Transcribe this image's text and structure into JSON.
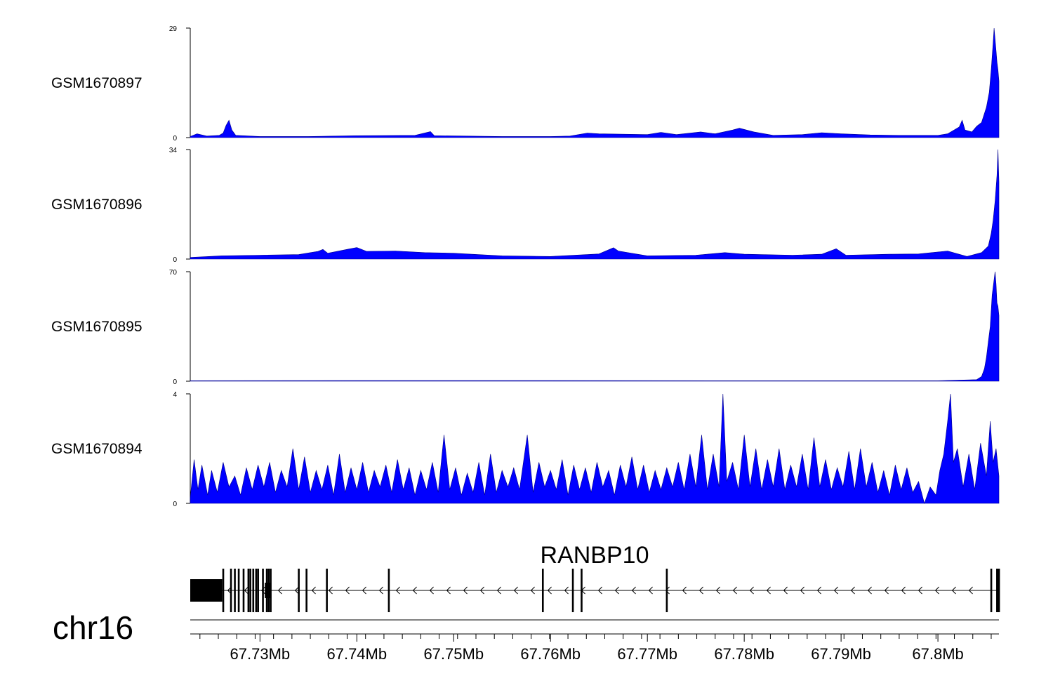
{
  "chart_data": {
    "type": "area",
    "chromosome": "chr16",
    "x_range_mb": [
      67.7228,
      67.8063
    ],
    "x_tick_labels": [
      "67.73Mb",
      "67.74Mb",
      "67.75Mb",
      "67.76Mb",
      "67.77Mb",
      "67.78Mb",
      "67.79Mb",
      "67.8Mb"
    ],
    "x_major_ticks_mb": [
      67.73,
      67.74,
      67.75,
      67.76,
      67.77,
      67.78,
      67.79,
      67.8
    ],
    "x_minor_ticks_mb": [
      67.7238,
      67.7257,
      67.7276,
      67.7295,
      67.7314,
      67.7333,
      67.7352,
      67.7371,
      67.739,
      67.7409,
      67.7428,
      67.7447,
      67.7466,
      67.7485,
      67.7504,
      67.7523,
      67.7542,
      67.7561,
      67.758,
      67.7599,
      67.7618,
      67.7637,
      67.7656,
      67.7675,
      67.7694,
      67.7713,
      67.7732,
      67.7751,
      67.777,
      67.7789,
      67.7808,
      67.7827,
      67.7846,
      67.7865,
      67.7884,
      67.7903,
      67.7922,
      67.7941,
      67.796,
      67.7979,
      67.7998,
      67.8017,
      67.8036,
      67.8055
    ],
    "fill_color": "#0000ff",
    "tracks": [
      {
        "name": "GSM1670897",
        "ylim": [
          0,
          29
        ],
        "y_tick_labels": [
          "29",
          "0"
        ],
        "points": [
          [
            67.7228,
            0.3
          ],
          [
            67.7235,
            1.0
          ],
          [
            67.7245,
            0.4
          ],
          [
            67.7258,
            0.6
          ],
          [
            67.7262,
            1.2
          ],
          [
            67.7265,
            3.2
          ],
          [
            67.7268,
            4.6
          ],
          [
            67.7271,
            2.0
          ],
          [
            67.7275,
            0.6
          ],
          [
            67.73,
            0.3
          ],
          [
            67.735,
            0.3
          ],
          [
            67.74,
            0.5
          ],
          [
            67.746,
            0.6
          ],
          [
            67.7476,
            1.6
          ],
          [
            67.748,
            0.5
          ],
          [
            67.755,
            0.3
          ],
          [
            67.76,
            0.3
          ],
          [
            67.762,
            0.4
          ],
          [
            67.7638,
            1.2
          ],
          [
            67.765,
            1.0
          ],
          [
            67.77,
            0.8
          ],
          [
            67.7714,
            1.4
          ],
          [
            67.773,
            0.8
          ],
          [
            67.7755,
            1.5
          ],
          [
            67.777,
            1.0
          ],
          [
            67.7788,
            2.0
          ],
          [
            67.7795,
            2.5
          ],
          [
            67.781,
            1.5
          ],
          [
            67.783,
            0.6
          ],
          [
            67.786,
            0.8
          ],
          [
            67.788,
            1.3
          ],
          [
            67.79,
            1.0
          ],
          [
            67.793,
            0.7
          ],
          [
            67.796,
            0.6
          ],
          [
            67.798,
            0.6
          ],
          [
            67.8,
            0.6
          ],
          [
            67.801,
            1.0
          ],
          [
            67.8022,
            2.8
          ],
          [
            67.8025,
            4.6
          ],
          [
            67.8028,
            2.0
          ],
          [
            67.8035,
            1.5
          ],
          [
            67.804,
            3.0
          ],
          [
            67.8045,
            4.0
          ],
          [
            67.805,
            8.0
          ],
          [
            67.8053,
            12.0
          ],
          [
            67.8055,
            18.0
          ],
          [
            67.8057,
            25.0
          ],
          [
            67.8058,
            29.0
          ],
          [
            67.806,
            23.0
          ],
          [
            67.8061,
            20.0
          ],
          [
            67.8062,
            18.0
          ],
          [
            67.8063,
            15.0
          ]
        ]
      },
      {
        "name": "GSM1670896",
        "ylim": [
          0,
          34
        ],
        "y_tick_labels": [
          "34",
          "0"
        ],
        "points": [
          [
            67.7228,
            0.5
          ],
          [
            67.726,
            1.0
          ],
          [
            67.73,
            1.2
          ],
          [
            67.734,
            1.4
          ],
          [
            67.736,
            2.4
          ],
          [
            67.7365,
            3.0
          ],
          [
            67.737,
            1.8
          ],
          [
            67.739,
            3.0
          ],
          [
            67.74,
            3.6
          ],
          [
            67.741,
            2.4
          ],
          [
            67.744,
            2.5
          ],
          [
            67.747,
            2.0
          ],
          [
            67.75,
            1.8
          ],
          [
            67.755,
            1.0
          ],
          [
            67.76,
            0.8
          ],
          [
            67.765,
            1.6
          ],
          [
            67.7665,
            3.5
          ],
          [
            67.767,
            2.5
          ],
          [
            67.77,
            1.0
          ],
          [
            67.775,
            1.2
          ],
          [
            67.778,
            2.0
          ],
          [
            67.78,
            1.5
          ],
          [
            67.785,
            1.2
          ],
          [
            67.788,
            1.5
          ],
          [
            67.7895,
            3.2
          ],
          [
            67.7905,
            1.2
          ],
          [
            67.795,
            1.5
          ],
          [
            67.798,
            1.6
          ],
          [
            67.801,
            2.5
          ],
          [
            67.803,
            0.8
          ],
          [
            67.8045,
            2.0
          ],
          [
            67.8052,
            4.0
          ],
          [
            67.8055,
            8.0
          ],
          [
            67.8057,
            12.0
          ],
          [
            67.8059,
            18.0
          ],
          [
            67.8061,
            26.0
          ],
          [
            67.8062,
            34.0
          ],
          [
            67.8063,
            24.0
          ]
        ]
      },
      {
        "name": "GSM1670895",
        "ylim": [
          0,
          70
        ],
        "y_tick_labels": [
          "70",
          "0"
        ],
        "points": [
          [
            67.7228,
            0.3
          ],
          [
            67.74,
            0.4
          ],
          [
            67.76,
            0.4
          ],
          [
            67.78,
            0.3
          ],
          [
            67.8,
            0.3
          ],
          [
            67.804,
            1.0
          ],
          [
            67.8045,
            3.0
          ],
          [
            67.8048,
            8.0
          ],
          [
            67.805,
            15.0
          ],
          [
            67.8052,
            25.0
          ],
          [
            67.8054,
            35.0
          ],
          [
            67.8056,
            55.0
          ],
          [
            67.8058,
            65.0
          ],
          [
            67.8059,
            70.0
          ],
          [
            67.806,
            62.0
          ],
          [
            67.8061,
            50.0
          ],
          [
            67.8062,
            48.0
          ],
          [
            67.8063,
            42.0
          ]
        ]
      },
      {
        "name": "GSM1670894",
        "ylim": [
          0,
          4
        ],
        "y_tick_labels": [
          "4",
          "0"
        ],
        "points": [
          [
            67.7228,
            0.2
          ],
          [
            67.7232,
            1.6
          ],
          [
            67.7236,
            0.5
          ],
          [
            67.724,
            1.4
          ],
          [
            67.7246,
            0.3
          ],
          [
            67.725,
            1.2
          ],
          [
            67.7256,
            0.4
          ],
          [
            67.7262,
            1.5
          ],
          [
            67.7268,
            0.6
          ],
          [
            67.7274,
            1.0
          ],
          [
            67.728,
            0.3
          ],
          [
            67.7286,
            1.3
          ],
          [
            67.7292,
            0.5
          ],
          [
            67.7298,
            1.4
          ],
          [
            67.7304,
            0.6
          ],
          [
            67.731,
            1.5
          ],
          [
            67.7316,
            0.4
          ],
          [
            67.7322,
            1.2
          ],
          [
            67.7328,
            0.6
          ],
          [
            67.7334,
            2.0
          ],
          [
            67.734,
            0.5
          ],
          [
            67.7346,
            1.7
          ],
          [
            67.7352,
            0.4
          ],
          [
            67.7358,
            1.2
          ],
          [
            67.7364,
            0.5
          ],
          [
            67.737,
            1.4
          ],
          [
            67.7376,
            0.3
          ],
          [
            67.7382,
            1.8
          ],
          [
            67.7388,
            0.4
          ],
          [
            67.7394,
            1.3
          ],
          [
            67.74,
            0.5
          ],
          [
            67.7406,
            1.5
          ],
          [
            67.7412,
            0.4
          ],
          [
            67.7418,
            1.2
          ],
          [
            67.7424,
            0.6
          ],
          [
            67.743,
            1.4
          ],
          [
            67.7436,
            0.4
          ],
          [
            67.7442,
            1.6
          ],
          [
            67.7448,
            0.5
          ],
          [
            67.7454,
            1.3
          ],
          [
            67.746,
            0.3
          ],
          [
            67.7466,
            1.2
          ],
          [
            67.7472,
            0.5
          ],
          [
            67.7478,
            1.5
          ],
          [
            67.7484,
            0.4
          ],
          [
            67.749,
            2.5
          ],
          [
            67.7496,
            0.5
          ],
          [
            67.7502,
            1.3
          ],
          [
            67.7508,
            0.3
          ],
          [
            67.7514,
            1.1
          ],
          [
            67.752,
            0.4
          ],
          [
            67.7526,
            1.5
          ],
          [
            67.7532,
            0.3
          ],
          [
            67.7538,
            1.8
          ],
          [
            67.7544,
            0.4
          ],
          [
            67.755,
            1.2
          ],
          [
            67.7556,
            0.6
          ],
          [
            67.7562,
            1.3
          ],
          [
            67.7568,
            0.5
          ],
          [
            67.7576,
            2.5
          ],
          [
            67.7582,
            0.4
          ],
          [
            67.7588,
            1.5
          ],
          [
            67.7594,
            0.6
          ],
          [
            67.76,
            1.2
          ],
          [
            67.7606,
            0.5
          ],
          [
            67.7612,
            1.6
          ],
          [
            67.7618,
            0.3
          ],
          [
            67.7624,
            1.4
          ],
          [
            67.763,
            0.5
          ],
          [
            67.7636,
            1.3
          ],
          [
            67.7642,
            0.4
          ],
          [
            67.7648,
            1.5
          ],
          [
            67.7654,
            0.6
          ],
          [
            67.766,
            1.2
          ],
          [
            67.7666,
            0.3
          ],
          [
            67.7672,
            1.4
          ],
          [
            67.7678,
            0.6
          ],
          [
            67.7684,
            1.7
          ],
          [
            67.769,
            0.5
          ],
          [
            67.7696,
            1.4
          ],
          [
            67.7702,
            0.4
          ],
          [
            67.7708,
            1.2
          ],
          [
            67.7714,
            0.5
          ],
          [
            67.772,
            1.3
          ],
          [
            67.7726,
            0.6
          ],
          [
            67.7732,
            1.5
          ],
          [
            67.7738,
            0.5
          ],
          [
            67.7744,
            1.8
          ],
          [
            67.775,
            0.6
          ],
          [
            67.7756,
            2.5
          ],
          [
            67.7762,
            0.5
          ],
          [
            67.7768,
            1.8
          ],
          [
            67.7774,
            0.6
          ],
          [
            67.7778,
            4.0
          ],
          [
            67.7782,
            0.8
          ],
          [
            67.7788,
            1.5
          ],
          [
            67.7794,
            0.5
          ],
          [
            67.78,
            2.5
          ],
          [
            67.7806,
            0.6
          ],
          [
            67.7812,
            2.0
          ],
          [
            67.7818,
            0.5
          ],
          [
            67.7824,
            1.6
          ],
          [
            67.783,
            0.6
          ],
          [
            67.7836,
            2.0
          ],
          [
            67.7842,
            0.5
          ],
          [
            67.7848,
            1.4
          ],
          [
            67.7854,
            0.6
          ],
          [
            67.786,
            1.8
          ],
          [
            67.7866,
            0.5
          ],
          [
            67.7872,
            2.4
          ],
          [
            67.7878,
            0.6
          ],
          [
            67.7884,
            1.6
          ],
          [
            67.789,
            0.5
          ],
          [
            67.7896,
            1.3
          ],
          [
            67.7902,
            0.6
          ],
          [
            67.7908,
            1.9
          ],
          [
            67.7914,
            0.5
          ],
          [
            67.792,
            2.0
          ],
          [
            67.7926,
            0.6
          ],
          [
            67.7932,
            1.5
          ],
          [
            67.7938,
            0.4
          ],
          [
            67.7944,
            1.2
          ],
          [
            67.795,
            0.3
          ],
          [
            67.7956,
            1.4
          ],
          [
            67.7962,
            0.5
          ],
          [
            67.7968,
            1.3
          ],
          [
            67.7974,
            0.4
          ],
          [
            67.798,
            0.8
          ],
          [
            67.7986,
            0.0
          ],
          [
            67.7992,
            0.6
          ],
          [
            67.7998,
            0.3
          ],
          [
            67.8002,
            1.2
          ],
          [
            67.8006,
            1.8
          ],
          [
            67.801,
            3.0
          ],
          [
            67.8013,
            4.0
          ],
          [
            67.8016,
            1.5
          ],
          [
            67.802,
            2.0
          ],
          [
            67.8026,
            0.6
          ],
          [
            67.8032,
            1.8
          ],
          [
            67.8038,
            0.5
          ],
          [
            67.8044,
            2.2
          ],
          [
            67.805,
            1.0
          ],
          [
            67.8054,
            3.0
          ],
          [
            67.8057,
            1.5
          ],
          [
            67.806,
            2.0
          ],
          [
            67.8063,
            1.0
          ]
        ]
      }
    ],
    "gene_track": {
      "gene_label": "RANBP10",
      "strand": "-",
      "transcript_start_mb": 67.7228,
      "transcript_end_mb": 67.8063,
      "thick_block_mb": [
        67.7228,
        67.7261
      ],
      "exons_mb": [
        67.7262,
        67.727,
        67.7274,
        67.7278,
        67.7283,
        67.7288,
        67.729,
        67.7293,
        67.7296,
        67.7298,
        67.7303,
        67.7307,
        67.7309,
        67.7311,
        67.734,
        67.7348,
        67.7369,
        67.7433,
        67.7592,
        67.7623,
        67.7632,
        67.772,
        67.8055,
        67.8061,
        67.8062,
        67.8063
      ],
      "small_block_mb": [
        67.7305,
        67.7311
      ]
    }
  }
}
